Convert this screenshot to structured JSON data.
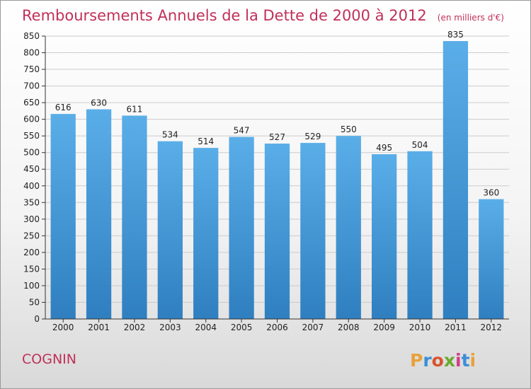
{
  "header": {
    "title": "Remboursements Annuels de la Dette de 2000 à 2012",
    "unit": "(en milliers d'€)"
  },
  "footer": {
    "place": "COGNIN",
    "brand": "Proxiti",
    "brand_colors": [
      "#e8a23a",
      "#3a8fd6",
      "#d8542f",
      "#6aaa2e",
      "#d43a8a",
      "#3a8fd6",
      "#e8a23a"
    ]
  },
  "colors": {
    "bar_top": "#5aaee8",
    "bar_bottom": "#2f7fc0",
    "grid": "#cccccc"
  },
  "chart_data": {
    "type": "bar",
    "title": "Remboursements Annuels de la Dette de 2000 à 2012",
    "subtitle": "(en milliers d'€)",
    "xlabel": "",
    "ylabel": "",
    "categories": [
      "2000",
      "2001",
      "2002",
      "2003",
      "2004",
      "2005",
      "2006",
      "2007",
      "2008",
      "2009",
      "2010",
      "2011",
      "2012"
    ],
    "values": [
      616,
      630,
      611,
      534,
      514,
      547,
      527,
      529,
      550,
      495,
      504,
      835,
      360
    ],
    "ylim": [
      0,
      850
    ],
    "yticks": [
      0,
      50,
      100,
      150,
      200,
      250,
      300,
      350,
      400,
      450,
      500,
      550,
      600,
      650,
      700,
      750,
      800,
      850
    ],
    "grid": true,
    "legend": "none"
  }
}
